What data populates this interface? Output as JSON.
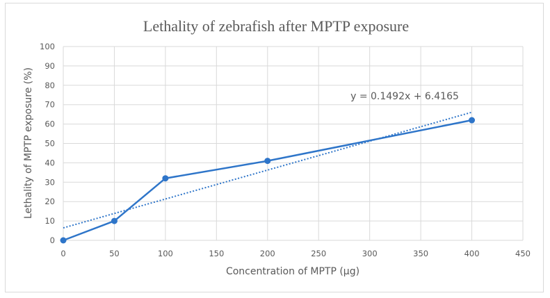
{
  "chart_data": {
    "type": "line",
    "title": "Lethality of zebrafish after MPTP exposure",
    "xlabel": "Concentration of MPTP (µg)",
    "ylabel": "Lethality of MPTP exposure (%)",
    "xlim": [
      0,
      450
    ],
    "ylim": [
      0,
      100
    ],
    "xticks": [
      0,
      50,
      100,
      150,
      200,
      250,
      300,
      350,
      400,
      450
    ],
    "yticks": [
      0,
      10,
      20,
      30,
      40,
      50,
      60,
      70,
      80,
      90,
      100
    ],
    "grid": true,
    "series": [
      {
        "name": "Lethality",
        "x": [
          0,
          50,
          100,
          200,
          400
        ],
        "y": [
          0,
          10,
          32,
          41,
          62
        ],
        "color": "#2e75c9",
        "markers": true
      }
    ],
    "trendline": {
      "type": "linear",
      "slope": 0.1492,
      "intercept": 6.4165,
      "x_range": [
        0,
        400
      ],
      "style": "dotted",
      "color": "#2e75c9",
      "equation_label": "y = 0.1492x + 6.4165"
    }
  }
}
